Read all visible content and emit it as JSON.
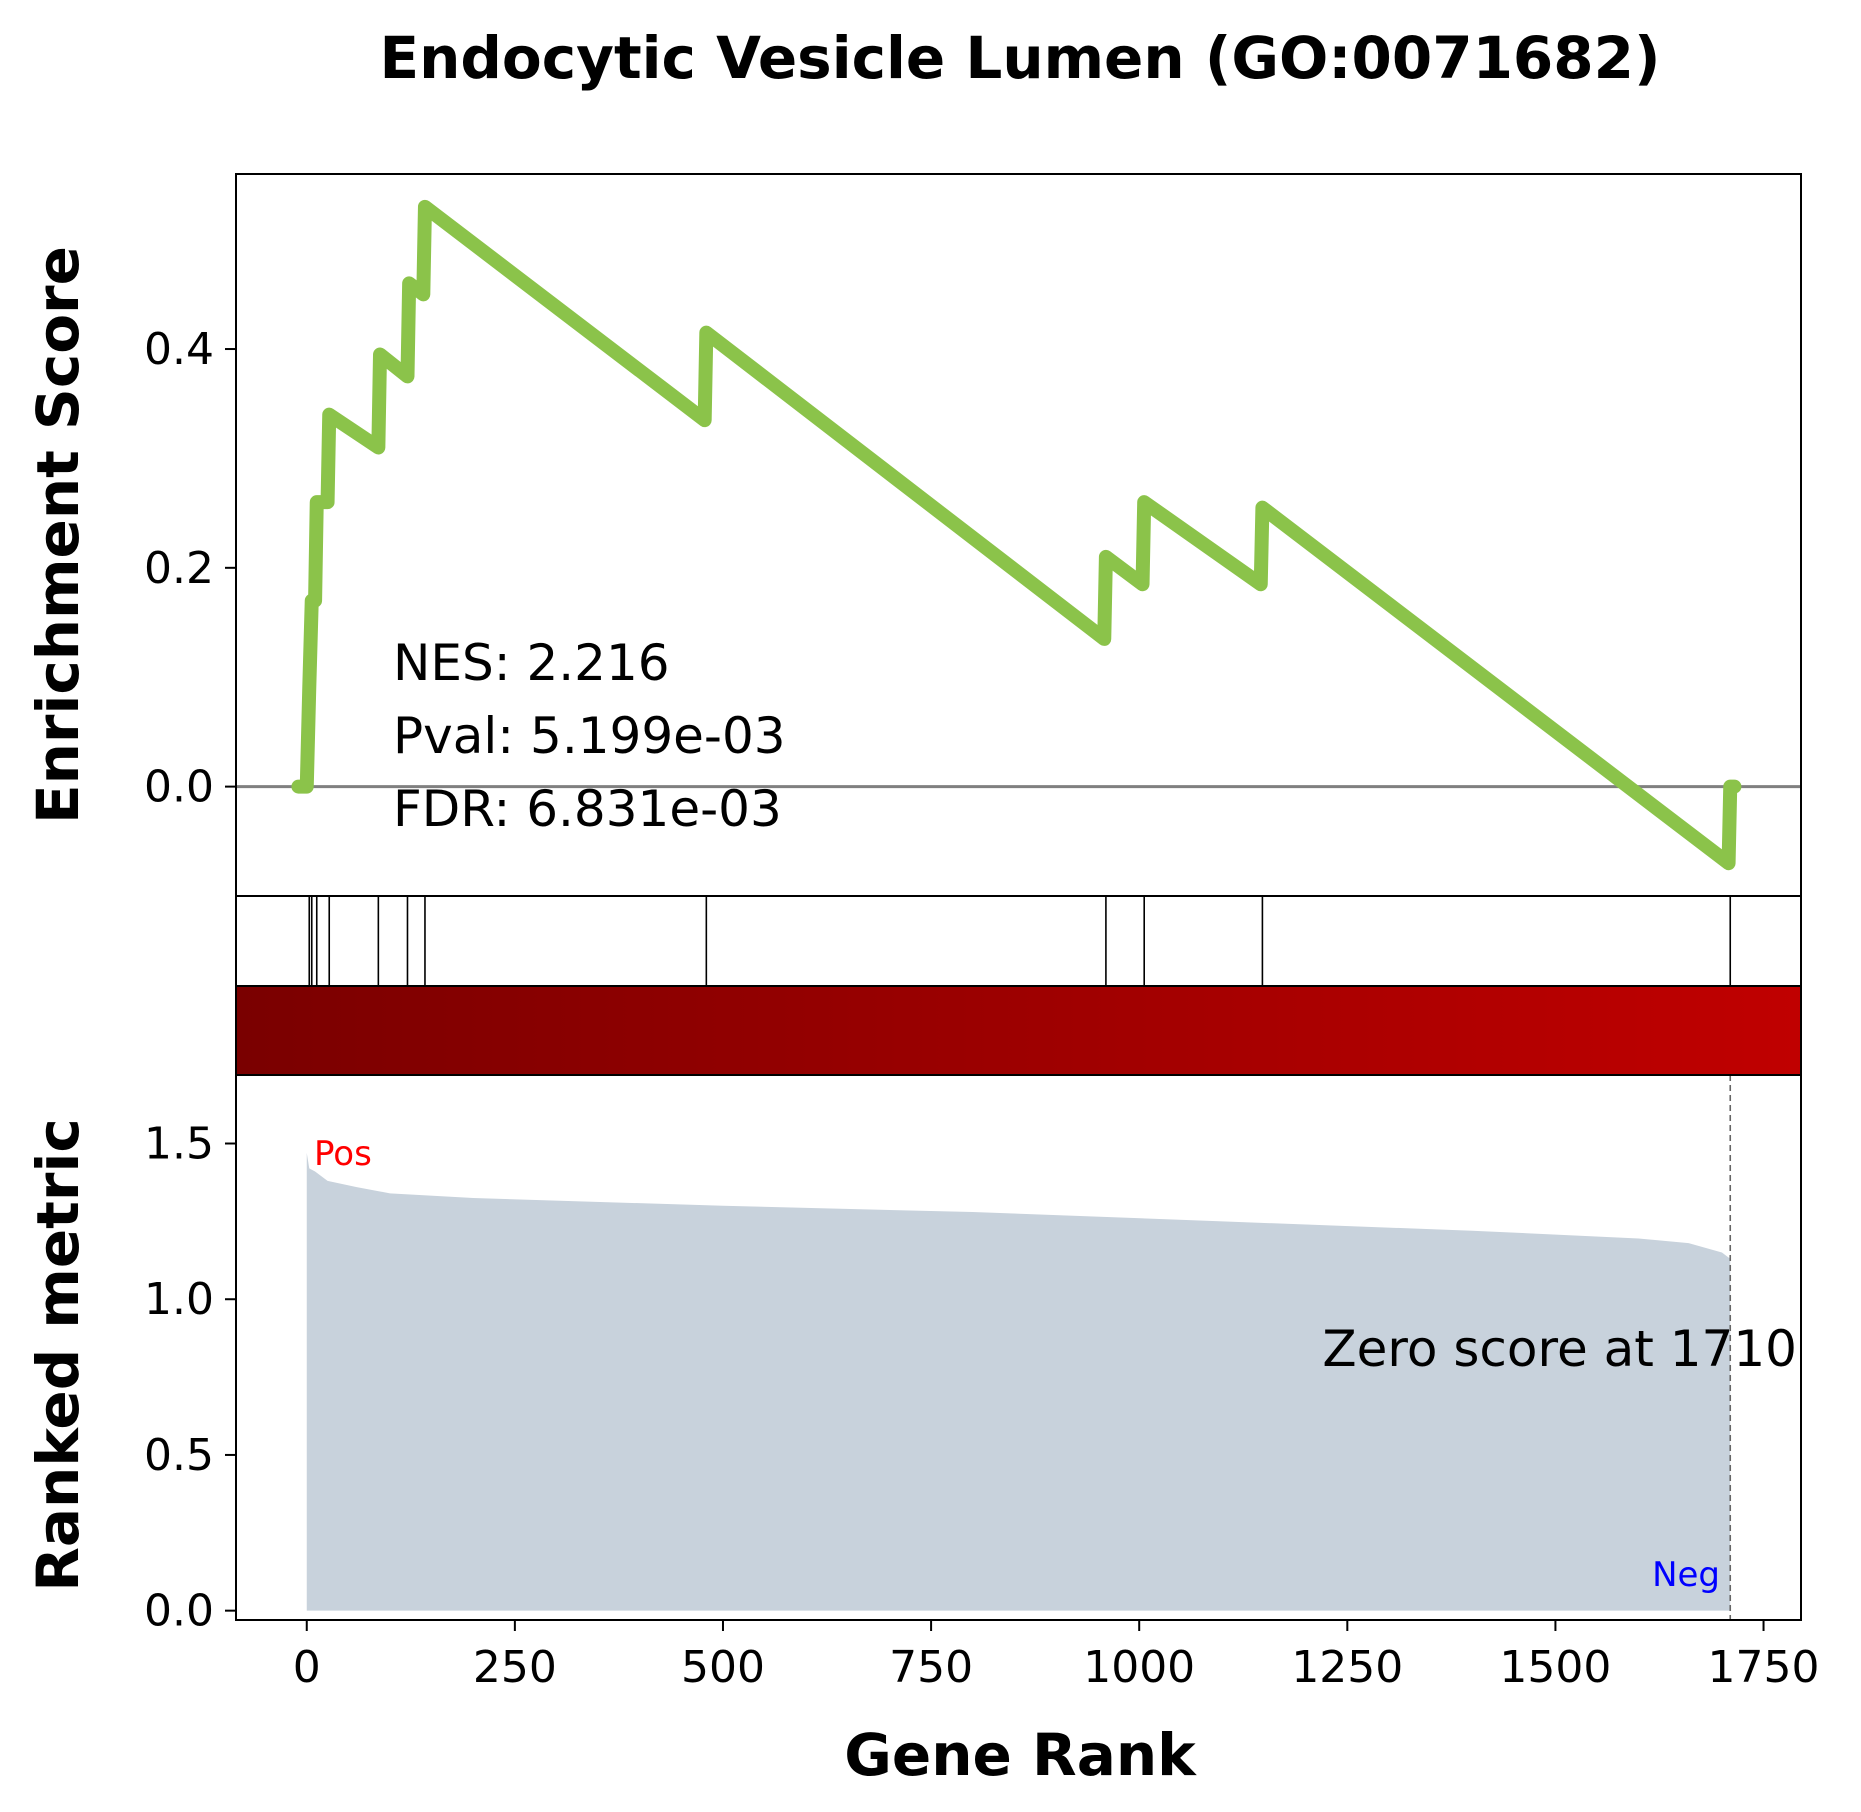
{
  "chart_data": {
    "type": "line",
    "title": "Endocytic Vesicle Lumen (GO:0071682)",
    "xlabel": "Gene Rank",
    "xlim": [
      -85,
      1795
    ],
    "xticks": [
      0,
      250,
      500,
      750,
      1000,
      1250,
      1500,
      1750
    ],
    "xtick_labels": [
      "0",
      "250",
      "500",
      "750",
      "1000",
      "1250",
      "1500",
      "1750"
    ],
    "enrichment": {
      "ylabel": "Enrichment Score",
      "ylim": [
        -0.1,
        0.56
      ],
      "yticks": [
        0.0,
        0.2,
        0.4
      ],
      "ytick_labels": [
        "0.0",
        "0.2",
        "0.4"
      ],
      "line_color": "#8bc34a",
      "zero_line_color": "#808080",
      "points": [
        [
          -10,
          0.0
        ],
        [
          0,
          0.0
        ],
        [
          3,
          0.09
        ],
        [
          6,
          0.17
        ],
        [
          10,
          0.17
        ],
        [
          12,
          0.26
        ],
        [
          25,
          0.26
        ],
        [
          27,
          0.34
        ],
        [
          86,
          0.31
        ],
        [
          88,
          0.395
        ],
        [
          121,
          0.375
        ],
        [
          123,
          0.46
        ],
        [
          140,
          0.45
        ],
        [
          142,
          0.53
        ],
        [
          478,
          0.335
        ],
        [
          480,
          0.415
        ],
        [
          958,
          0.135
        ],
        [
          960,
          0.21
        ],
        [
          1004,
          0.185
        ],
        [
          1006,
          0.26
        ],
        [
          1146,
          0.185
        ],
        [
          1148,
          0.255
        ],
        [
          1708,
          -0.07
        ],
        [
          1710,
          0.0
        ],
        [
          1715,
          0.0
        ]
      ],
      "stats": {
        "nes": "NES: 2.216",
        "pval": "Pval: 5.199e-03",
        "fdr": "FDR: 6.831e-03"
      }
    },
    "hits": [
      3,
      6,
      12,
      27,
      86,
      121,
      142,
      480,
      960,
      1006,
      1148,
      1710
    ],
    "heatmap": {
      "start_color": "#7a0000",
      "end_color": "#c00000"
    },
    "ranked": {
      "ylabel": "Ranked metric",
      "ylim": [
        -0.03,
        1.72
      ],
      "yticks": [
        0.0,
        0.5,
        1.0,
        1.5
      ],
      "ytick_labels": [
        "0.0",
        "0.5",
        "1.0",
        "1.5"
      ],
      "fill_color": "#c8d2dc",
      "points": [
        [
          0,
          1.47
        ],
        [
          3,
          1.42
        ],
        [
          10,
          1.41
        ],
        [
          25,
          1.38
        ],
        [
          60,
          1.36
        ],
        [
          100,
          1.34
        ],
        [
          200,
          1.325
        ],
        [
          500,
          1.3
        ],
        [
          800,
          1.28
        ],
        [
          1100,
          1.25
        ],
        [
          1400,
          1.22
        ],
        [
          1600,
          1.195
        ],
        [
          1660,
          1.18
        ],
        [
          1700,
          1.15
        ],
        [
          1710,
          1.13
        ]
      ],
      "zero_score_rank": 1710,
      "zero_score_label": "Zero score at 1710",
      "pos_label": "Pos",
      "neg_label": "Neg",
      "pos_color": "#ff0000",
      "neg_color": "#0000ff"
    }
  }
}
